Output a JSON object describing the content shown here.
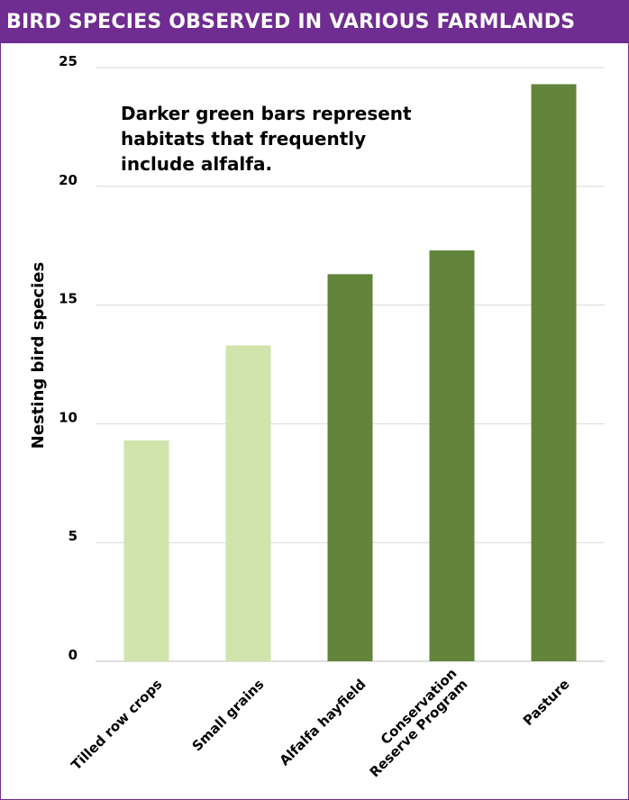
{
  "title": "BIRD SPECIES OBSERVED IN VARIOUS FARMLANDS",
  "colors": {
    "title_bg": "#6f2c91",
    "title_text": "#ffffff",
    "light_bar": "#d0e4ac",
    "dark_bar": "#62843b"
  },
  "chart_data": {
    "type": "bar",
    "categories": [
      [
        "Tilled row crops"
      ],
      [
        "Small grains"
      ],
      [
        "Alfalfa hayfield"
      ],
      [
        "Conservation",
        "Reserve Program"
      ],
      [
        "Pasture"
      ]
    ],
    "values": [
      9.3,
      13.3,
      16.3,
      17.3,
      24.3
    ],
    "includes_alfalfa": [
      false,
      false,
      true,
      true,
      true
    ],
    "ylabel": "Nesting bird species",
    "ylim": [
      0,
      25
    ],
    "yticks": [
      0,
      5,
      10,
      15,
      20,
      25
    ],
    "grid": true,
    "annotation": [
      "Darker green bars represent",
      "habitats that frequently",
      "include alfalfa."
    ]
  }
}
